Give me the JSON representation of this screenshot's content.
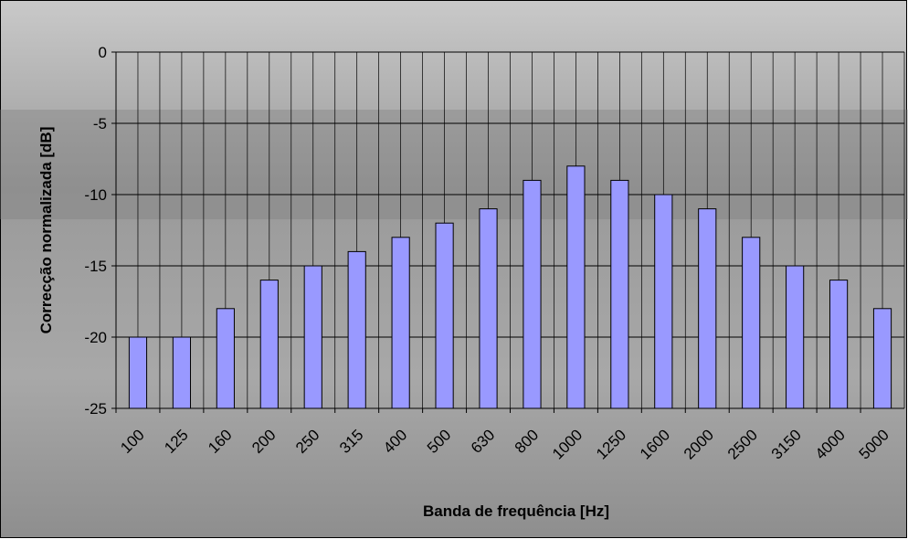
{
  "chart_data": {
    "type": "bar",
    "x_label": "Banda de frequência [Hz]",
    "y_label": "Correcção normalizada [dB]",
    "categories": [
      "100",
      "125",
      "160",
      "200",
      "250",
      "315",
      "400",
      "500",
      "630",
      "800",
      "1000",
      "1250",
      "1600",
      "2000",
      "2500",
      "3150",
      "4000",
      "5000"
    ],
    "values": [
      -20,
      -20,
      -18,
      -16,
      -15,
      -14,
      -13,
      -12,
      -11,
      -9,
      -8,
      -9,
      -10,
      -11,
      -13,
      -15,
      -16,
      -18
    ],
    "color": "#9999ff",
    "ylim": [
      -25,
      0
    ],
    "yticks": [
      -25,
      -20,
      -15,
      -10,
      -5,
      0
    ],
    "grid": true
  }
}
